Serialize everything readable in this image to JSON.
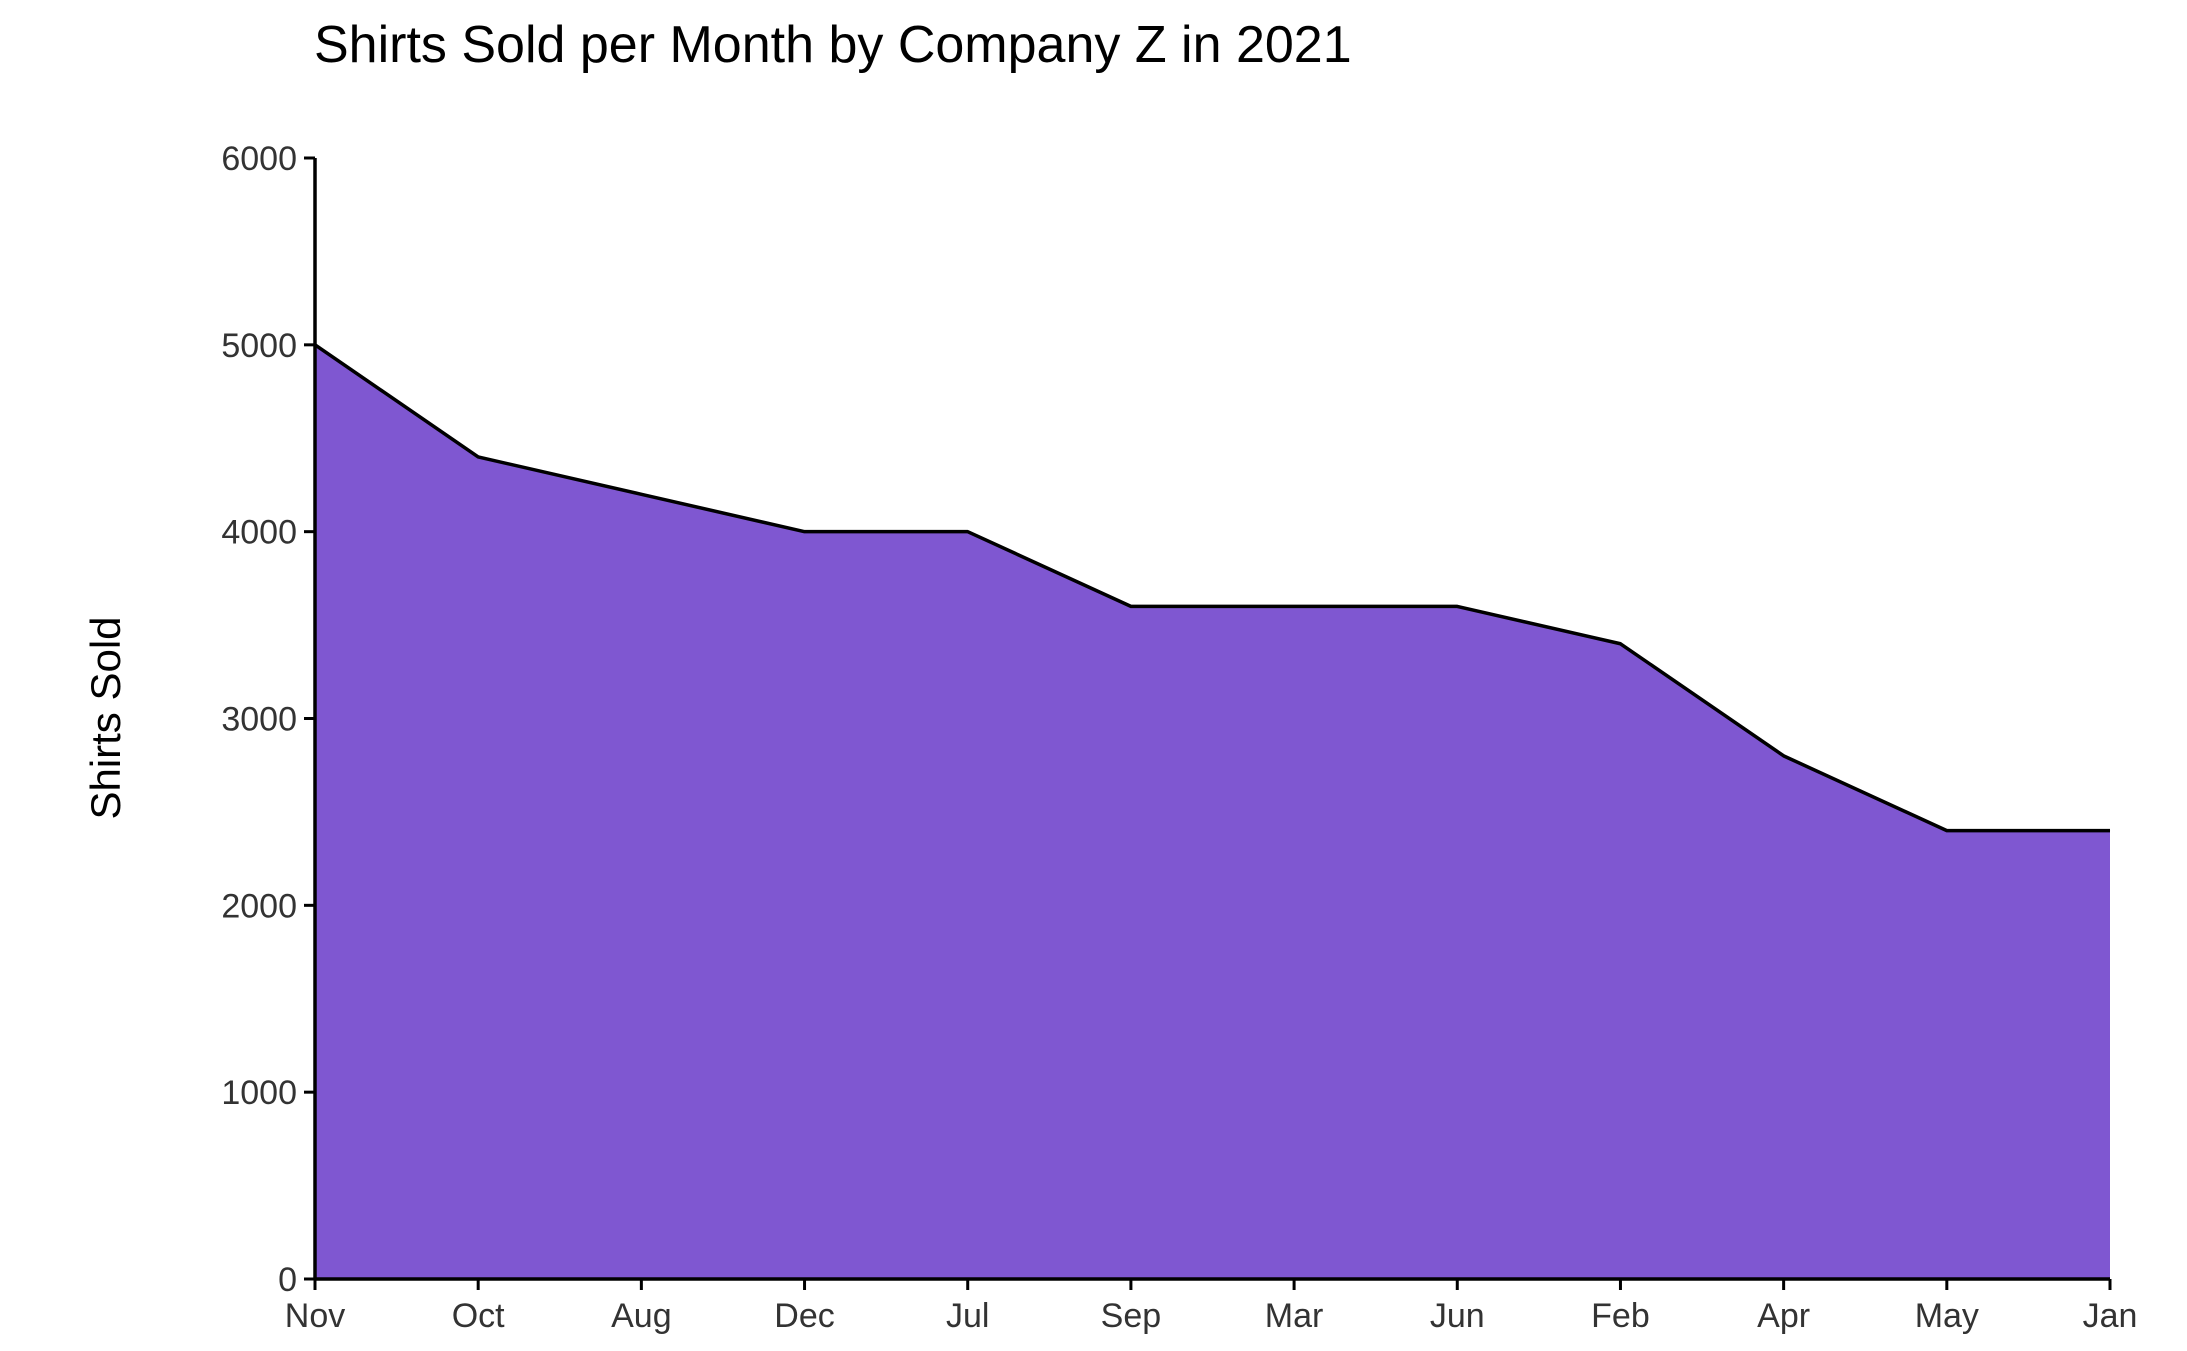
{
  "chart_data": {
    "type": "area",
    "title": "Shirts Sold per Month by Company Z in 2021",
    "xlabel": "",
    "ylabel": "Shirts Sold",
    "categories": [
      "Nov",
      "Oct",
      "Aug",
      "Dec",
      "Jul",
      "Sep",
      "Mar",
      "Jun",
      "Feb",
      "Apr",
      "May",
      "Jan"
    ],
    "values": [
      5000,
      4400,
      4200,
      4000,
      4000,
      3600,
      3600,
      3600,
      3400,
      2800,
      2400,
      2400
    ],
    "ylim": [
      0,
      6000
    ],
    "yticks": [
      0,
      1000,
      2000,
      3000,
      4000,
      5000,
      6000
    ],
    "grid": false,
    "legend": "none",
    "colors": {
      "fill": "#7f57d1",
      "line": "#000000"
    }
  }
}
